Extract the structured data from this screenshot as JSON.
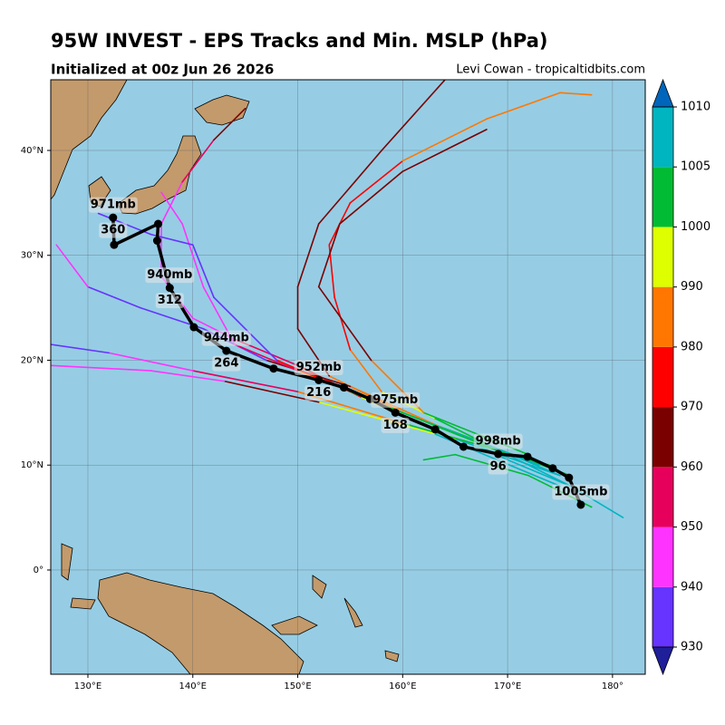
{
  "chart_data": {
    "type": "track-map",
    "title": "95W INVEST - EPS Tracks and Min. MSLP (hPa)",
    "subtitle": "Initialized at 00z Jun 26 2026",
    "credit": "Levi Cowan - tropicaltidbits.com",
    "xlim": [
      126.46,
      183.12
    ],
    "ylim": [
      -9.94,
      46.74
    ],
    "xticks": [
      {
        "value": 130,
        "label": "130°E"
      },
      {
        "value": 140,
        "label": "140°E"
      },
      {
        "value": 150,
        "label": "150°E"
      },
      {
        "value": 160,
        "label": "160°E"
      },
      {
        "value": 170,
        "label": "170°E"
      },
      {
        "value": 180,
        "label": "180°"
      }
    ],
    "yticks": [
      {
        "value": 0,
        "label": "0°"
      },
      {
        "value": 10,
        "label": "10°N"
      },
      {
        "value": 20,
        "label": "20°N"
      },
      {
        "value": 30,
        "label": "30°N"
      },
      {
        "value": 40,
        "label": "40°N"
      }
    ],
    "grid": true,
    "colorbar": {
      "levels": [
        930,
        940,
        950,
        960,
        970,
        980,
        990,
        1000,
        1005,
        1010
      ],
      "colors": [
        "#6633ff",
        "#ff33ff",
        "#e6005c",
        "#7a0000",
        "#ff0000",
        "#ff7700",
        "#ddff00",
        "#00bb33",
        "#00b4c0"
      ],
      "under_color": "#1f1f99",
      "over_color": "#0066bb"
    },
    "tracks": [
      {
        "lon": [
          176,
          170,
          163,
          158,
          155,
          153.5,
          153,
          155,
          160,
          168,
          175,
          178
        ],
        "lat": [
          8,
          11,
          14.5,
          17,
          21,
          26,
          31,
          35,
          39,
          43,
          45.5,
          45.3
        ],
        "mslp": [
          1006,
          1002,
          995,
          985,
          975,
          972,
          972,
          975,
          982,
          985,
          988,
          995
        ]
      },
      {
        "lon": [
          175,
          168,
          160,
          153,
          150,
          150,
          152,
          158,
          164
        ],
        "lat": [
          9,
          12,
          15,
          18.5,
          23,
          27,
          33,
          40,
          46.7
        ],
        "mslp": [
          1006,
          1001,
          985,
          966,
          962,
          961,
          962,
          965,
          966
        ]
      },
      {
        "lon": [
          175,
          165,
          156,
          150,
          144,
          140,
          137,
          137,
          139,
          142,
          145
        ],
        "lat": [
          9,
          12.5,
          16.5,
          19.5,
          22,
          24,
          28,
          33,
          37,
          41,
          44
        ],
        "mslp": [
          1006,
          995,
          975,
          955,
          945,
          942,
          942,
          948,
          958,
          965,
          972
        ]
      },
      {
        "lon": [
          175,
          163,
          152,
          143,
          136,
          126.5
        ],
        "lat": [
          8,
          13,
          16,
          18,
          19,
          19.5
        ],
        "mslp": [
          1006,
          990,
          968,
          948,
          944,
          942
        ]
      },
      {
        "lon": [
          174,
          160,
          150,
          140,
          132,
          126.5
        ],
        "lat": [
          10,
          14,
          17,
          19,
          20.7,
          21.5
        ],
        "mslp": [
          1004,
          985,
          955,
          945,
          938,
          937
        ]
      },
      {
        "lon": [
          176,
          165,
          155,
          147,
          141,
          135,
          130,
          127
        ],
        "lat": [
          9,
          13,
          17.5,
          20,
          23,
          25,
          27,
          31
        ],
        "mslp": [
          1003,
          985,
          960,
          938,
          934,
          935,
          940,
          952
        ]
      },
      {
        "lon": [
          173,
          160,
          150,
          144,
          141,
          139,
          137
        ],
        "lat": [
          10,
          15,
          19,
          21.5,
          27,
          33,
          36
        ],
        "mslp": [
          1005,
          980,
          950,
          942,
          944,
          946,
          948
        ]
      },
      {
        "lon": [
          170,
          155,
          148,
          142,
          140,
          136,
          131
        ],
        "lat": [
          11,
          17,
          20,
          26,
          31,
          32,
          34
        ],
        "mslp": [
          1004,
          975,
          938,
          936,
          935,
          938,
          955
        ]
      },
      {
        "lon": [
          172,
          162,
          157,
          152,
          154,
          160,
          168
        ],
        "lat": [
          11,
          15,
          20,
          27,
          33,
          38,
          42
        ],
        "mslp": [
          1004,
          985,
          968,
          965,
          966,
          966,
          968
        ]
      },
      {
        "lon": [
          178,
          172,
          165,
          162
        ],
        "lat": [
          6,
          9,
          11,
          10.5
        ],
        "mslp": [
          1004,
          1003,
          1002,
          1002
        ]
      },
      {
        "lon": [
          181,
          176,
          170,
          167
        ],
        "lat": [
          5,
          8,
          10.5,
          12
        ],
        "mslp": [
          1008,
          1007,
          1006,
          1006
        ]
      }
    ],
    "mean_track": {
      "lon": [
        176.98,
        175.85,
        174.3,
        171.9,
        169.1,
        165.8,
        163.1,
        159.3,
        156.9,
        154.4,
        152.0,
        147.7,
        143.2,
        140.1,
        137.8,
        136.6,
        136.7,
        132.5,
        132.4
      ],
      "lat": [
        6.22,
        8.8,
        9.7,
        10.8,
        11.06,
        11.75,
        13.4,
        15.0,
        16.3,
        17.4,
        18.1,
        19.2,
        20.9,
        23.15,
        26.9,
        31.4,
        33.0,
        31.0,
        33.6
      ],
      "mslp": {
        "values": [
          1005,
          null,
          null,
          null,
          998,
          null,
          null,
          975,
          null,
          null,
          952,
          null,
          944,
          null,
          940,
          null,
          null,
          null,
          971
        ],
        "value_labels": [
          "1005mb",
          null,
          null,
          null,
          "998mb",
          null,
          null,
          "975mb",
          null,
          null,
          "952mb",
          null,
          "944mb",
          null,
          "940mb",
          null,
          null,
          null,
          "971mb"
        ]
      },
      "hours": [
        null,
        null,
        null,
        null,
        96,
        null,
        null,
        168,
        null,
        null,
        216,
        null,
        264,
        null,
        312,
        null,
        null,
        null,
        360
      ]
    }
  }
}
